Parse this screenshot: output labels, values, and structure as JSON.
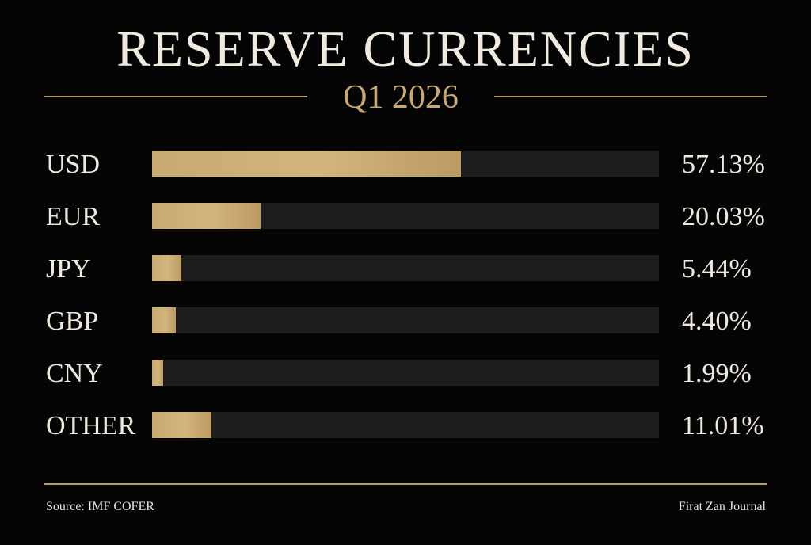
{
  "header": {
    "title": "RESERVE CURRENCIES",
    "subtitle": "Q1 2026"
  },
  "footer": {
    "source": "Source: IMF COFER",
    "credit": "Firat Zan Journal"
  },
  "colors": {
    "background": "#050505",
    "accent_gold": "#c9a770",
    "bar_fill": "#cdae74",
    "bar_track": "#1d1d1e",
    "text": "#efe9dd"
  },
  "chart_data": {
    "type": "bar",
    "orientation": "horizontal",
    "title": "RESERVE CURRENCIES",
    "subtitle": "Q1 2026",
    "categories": [
      "USD",
      "EUR",
      "JPY",
      "GBP",
      "CNY",
      "OTHER"
    ],
    "values": [
      57.13,
      20.03,
      5.44,
      4.4,
      1.99,
      11.01
    ],
    "value_labels": [
      "57.13%",
      "20.03%",
      "5.44%",
      "4.40%",
      "1.99%",
      "11.01%"
    ],
    "xlim": [
      0,
      100
    ],
    "grid": false,
    "legend": "none"
  }
}
